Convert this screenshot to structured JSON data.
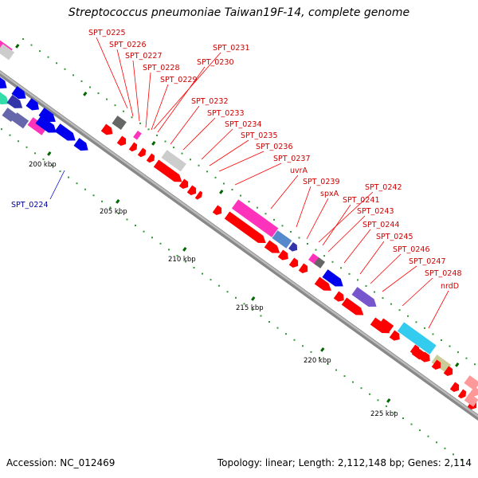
{
  "title": "Streptococcus pneumoniae Taiwan19F-14, complete genome",
  "accession_label": "Accession: NC_012469",
  "topology_label": "Topology: linear; Length: 2,112,148 bp; Genes: 2,114",
  "colors": {
    "backbone": "#888888",
    "gene_red": "#ff0000",
    "label_red": "#cc0000",
    "label_blue": "#000099",
    "tick_green": "#339933",
    "tick_dark_green": "#006600"
  },
  "scale_ticks": [
    "200 kbp",
    "205 kbp",
    "210 kbp",
    "215 kbp",
    "220 kbp",
    "225 kbp"
  ],
  "gene_labels": [
    "SPT_0225",
    "SPT_0226",
    "SPT_0227",
    "SPT_0228",
    "SPT_0229",
    "SPT_0231",
    "SPT_0230",
    "SPT_0232",
    "SPT_0233",
    "SPT_0234",
    "SPT_0235",
    "SPT_0236",
    "SPT_0237",
    "uvrA",
    "SPT_0239",
    "spxA",
    "SPT_0242",
    "SPT_0241",
    "SPT_0243",
    "SPT_0244",
    "SPT_0245",
    "SPT_0246",
    "SPT_0247",
    "SPT_0248",
    "nrdD"
  ],
  "left_label": "SPT_0224",
  "gene_colors": {
    "red": "#ff0000",
    "blue": "#0000ee",
    "navy": "#3333aa",
    "slate": "#6666aa",
    "magenta": "#ff33bb",
    "gray": "#666666",
    "lightgray": "#cccccc",
    "cyan": "#33ccee",
    "purple": "#7755cc",
    "khaki": "#cccc99",
    "pink": "#ff9999",
    "teal": "#33ddaa",
    "steel": "#5588cc"
  }
}
